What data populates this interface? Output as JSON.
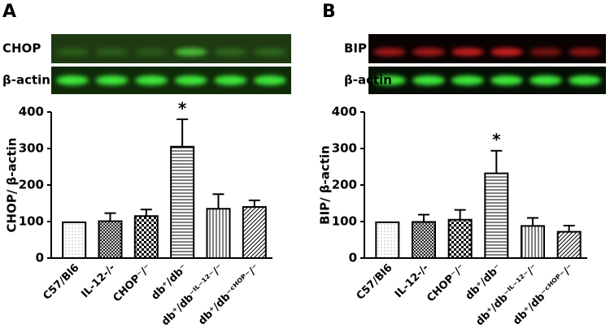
{
  "chart_data": [
    {
      "type": "bar",
      "panel": "A",
      "blot_labels": [
        "CHOP",
        "β-actin"
      ],
      "ylabel": "CHOP/ β-actin",
      "categories": [
        "C57/Bl6",
        "IL-12-/-",
        "CHOP⁻/⁻",
        "db⁺/db⁻",
        "db⁺/db⁻ᴵᴸ⁻¹²⁻/⁻",
        "db⁺/db⁻ᶜᴴᴼᴾ⁻/⁻"
      ],
      "values": [
        98,
        101,
        115,
        305,
        135,
        140
      ],
      "errors": [
        null,
        22,
        18,
        75,
        40,
        18
      ],
      "annotations": [
        null,
        null,
        null,
        "*",
        null,
        null
      ],
      "ylim": [
        0,
        400
      ],
      "yticks": [
        0,
        100,
        200,
        300,
        400
      ],
      "color": "#000000"
    },
    {
      "type": "bar",
      "panel": "B",
      "blot_labels": [
        "BIP",
        "β-actin"
      ],
      "ylabel": "BIP/ β-actin",
      "categories": [
        "C57/Bl6",
        "IL-12-/-",
        "CHOP⁻/⁻",
        "db⁺/db⁻",
        "db⁺/db⁻ᴵᴸ⁻¹²⁻/⁻",
        "db⁺/db⁻ᶜᴴᴼᴾ⁻/⁻"
      ],
      "values": [
        98,
        99,
        105,
        232,
        88,
        72
      ],
      "errors": [
        null,
        20,
        27,
        62,
        22,
        17
      ],
      "annotations": [
        null,
        null,
        null,
        "*",
        null,
        null
      ],
      "ylim": [
        0,
        400
      ],
      "yticks": [
        0,
        100,
        200,
        300,
        400
      ],
      "color": "#000000"
    }
  ]
}
